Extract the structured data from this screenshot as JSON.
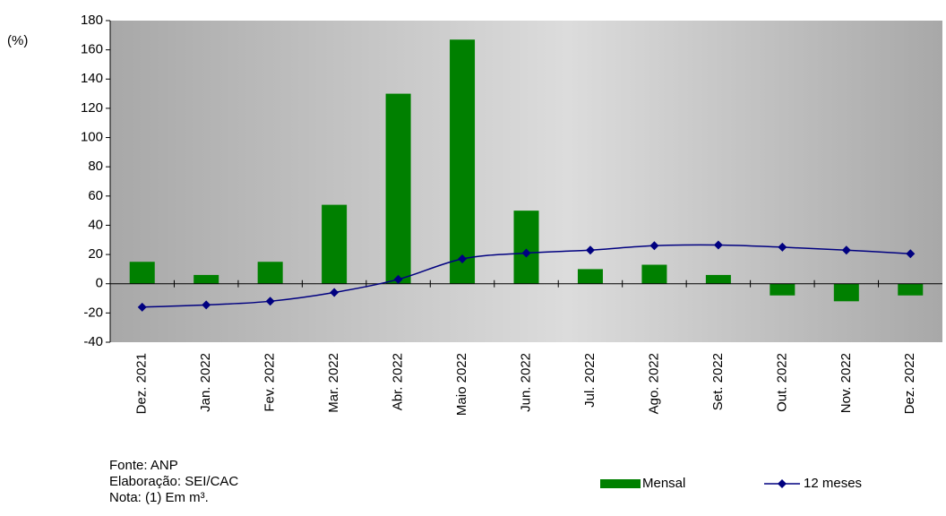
{
  "chart_data": {
    "type": "bar-line",
    "y_label": "(%)",
    "categories": [
      "Dez. 2021",
      "Jan. 2022",
      "Fev. 2022",
      "Mar. 2022",
      "Abr. 2022",
      "Maio 2022",
      "Jun. 2022",
      "Jul. 2022",
      "Ago. 2022",
      "Set. 2022",
      "Out. 2022",
      "Nov. 2022",
      "Dez. 2022"
    ],
    "series": [
      {
        "name": "Mensal",
        "type": "bar",
        "color": "#008000",
        "values": [
          15,
          6,
          15,
          54,
          130,
          167,
          50,
          10,
          13,
          6,
          -8,
          -12,
          -8
        ]
      },
      {
        "name": "12 meses",
        "type": "line",
        "color": "#000080",
        "values": [
          -16,
          -14.5,
          -12,
          -6,
          3,
          17,
          21,
          23,
          26,
          26.5,
          25,
          23,
          20.5
        ]
      }
    ],
    "ylim": [
      -40,
      180
    ],
    "yticks": [
      -40,
      -20,
      0,
      20,
      40,
      60,
      80,
      100,
      120,
      140,
      160,
      180
    ],
    "notes": [
      "Fonte: ANP",
      "Elaboração: SEI/CAC",
      "Nota: (1) Em m³."
    ]
  }
}
